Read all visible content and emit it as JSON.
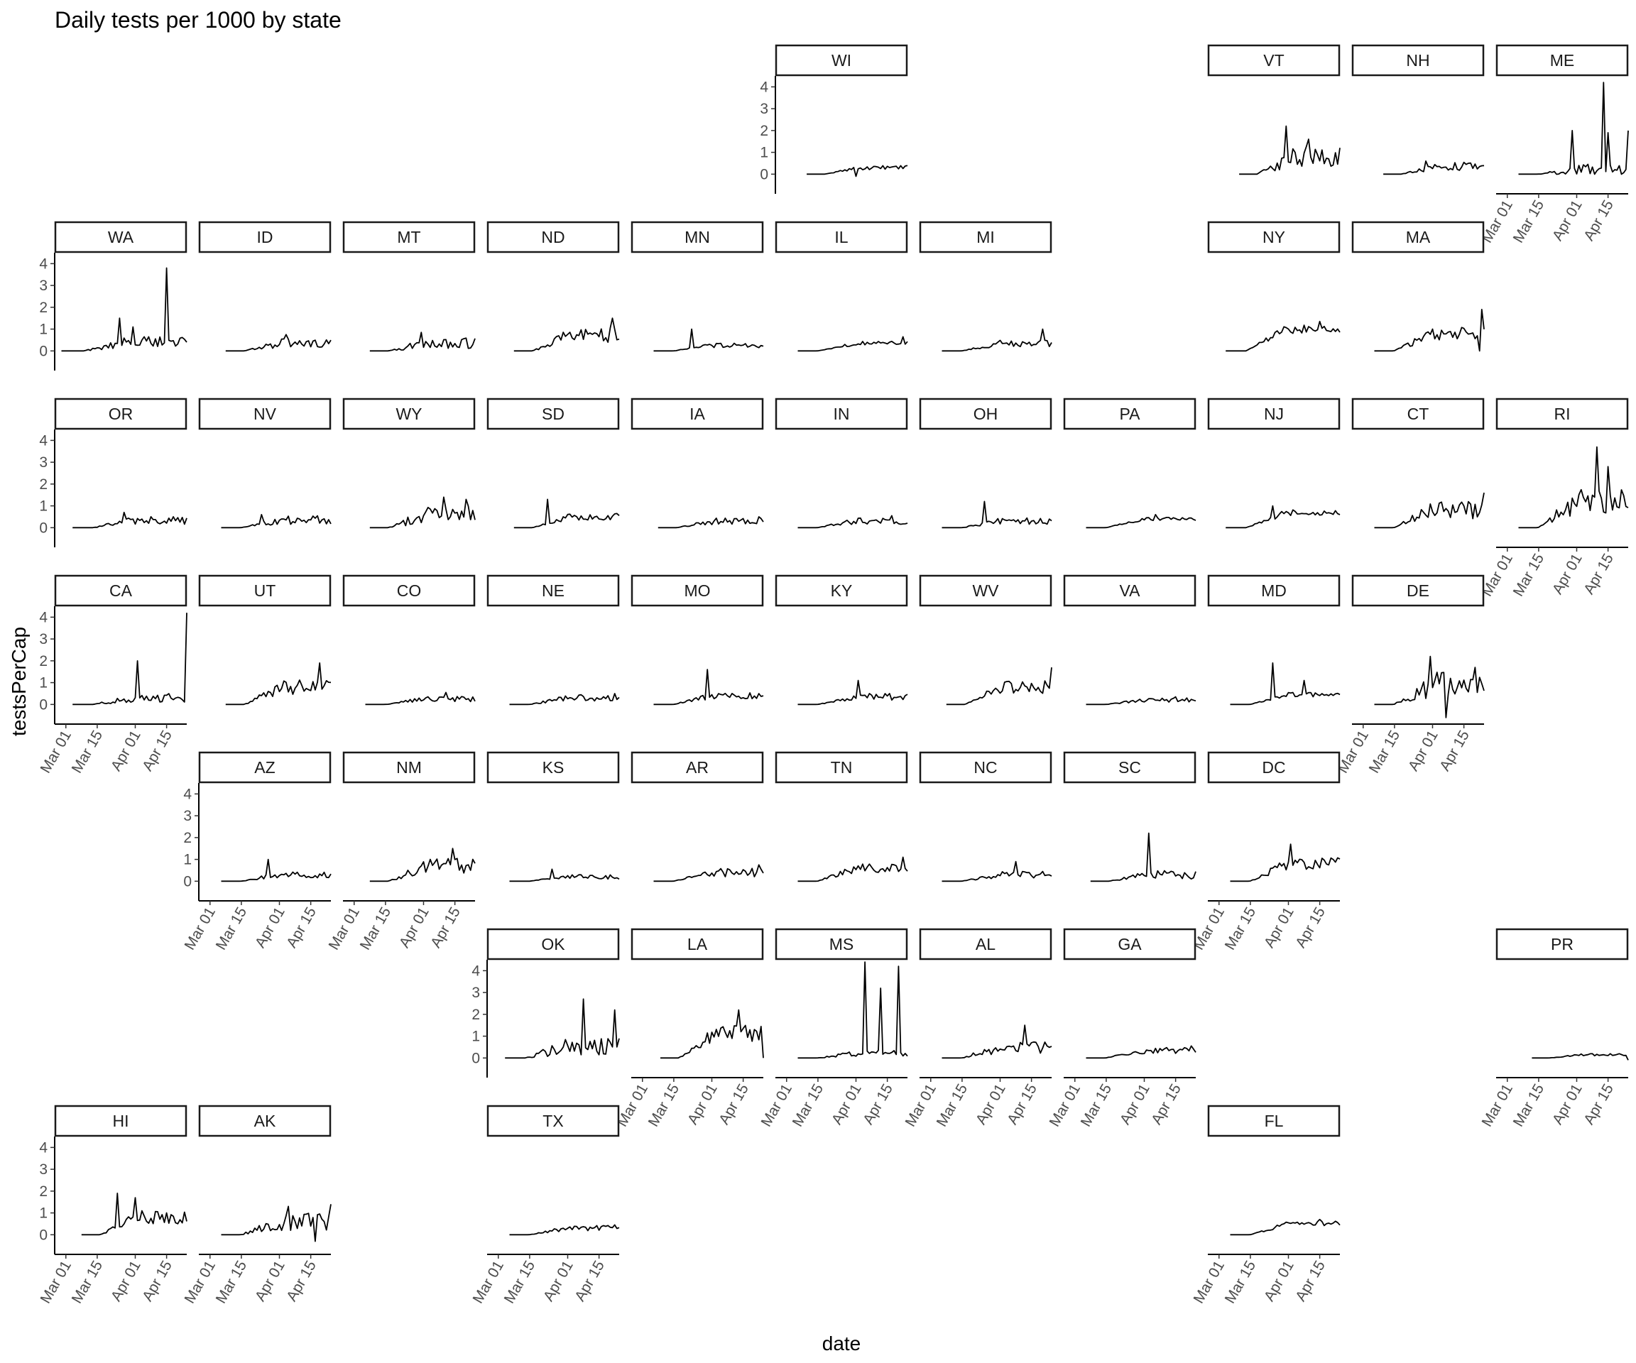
{
  "chart_data": {
    "type": "line",
    "title": "Daily tests per 1000 by state",
    "xlabel": "date",
    "ylabel": "testsPerCap",
    "x_ticks": [
      "Mar 01",
      "Mar 15",
      "Apr 01",
      "Apr 15"
    ],
    "y_ticks": [
      "0",
      "1",
      "2",
      "3",
      "4"
    ],
    "x_range": [
      "2020-02-25",
      "2020-04-24"
    ],
    "ylim": [
      -0.9,
      4.5
    ],
    "grid": false,
    "layout": "facet_geo (US state grid)",
    "line_color": "#000000",
    "panels": [
      {
        "state": "WI",
        "row": 0,
        "col": 5,
        "start": "2020-03-10",
        "base": 0.3,
        "noise": 0.1,
        "peaks": [
          [
            "2020-04-01",
            -0.1
          ]
        ]
      },
      {
        "state": "VT",
        "row": 0,
        "col": 8,
        "start": "2020-03-10",
        "base": 0.8,
        "noise": 0.5,
        "peaks": [
          [
            "2020-03-31",
            2.2
          ],
          [
            "2020-04-10",
            1.6
          ]
        ]
      },
      {
        "state": "NH",
        "row": 0,
        "col": 9,
        "start": "2020-03-10",
        "base": 0.35,
        "noise": 0.2,
        "peaks": [
          [
            "2020-03-29",
            0.6
          ]
        ]
      },
      {
        "state": "ME",
        "row": 0,
        "col": 10,
        "start": "2020-03-06",
        "base": 0.2,
        "noise": 0.25,
        "peaks": [
          [
            "2020-03-30",
            2.0
          ],
          [
            "2020-04-13",
            4.2
          ],
          [
            "2020-04-15",
            1.9
          ],
          [
            "2020-04-24",
            2.0
          ]
        ]
      },
      {
        "state": "WA",
        "row": 1,
        "col": 0,
        "start": "2020-02-28",
        "base": 0.4,
        "noise": 0.25,
        "peaks": [
          [
            "2020-03-25",
            1.5
          ],
          [
            "2020-03-31",
            1.1
          ],
          [
            "2020-04-15",
            3.8
          ]
        ]
      },
      {
        "state": "ID",
        "row": 1,
        "col": 1,
        "start": "2020-03-08",
        "base": 0.35,
        "noise": 0.2,
        "peaks": [
          [
            "2020-04-04",
            0.75
          ]
        ]
      },
      {
        "state": "MT",
        "row": 1,
        "col": 2,
        "start": "2020-03-08",
        "base": 0.35,
        "noise": 0.25,
        "peaks": [
          [
            "2020-03-31",
            0.85
          ]
        ]
      },
      {
        "state": "ND",
        "row": 1,
        "col": 3,
        "start": "2020-03-08",
        "base": 0.7,
        "noise": 0.35,
        "peaks": [
          [
            "2020-04-21",
            1.5
          ]
        ]
      },
      {
        "state": "MN",
        "row": 1,
        "col": 4,
        "start": "2020-03-06",
        "base": 0.25,
        "noise": 0.1,
        "peaks": [
          [
            "2020-03-23",
            1.0
          ]
        ]
      },
      {
        "state": "IL",
        "row": 1,
        "col": 5,
        "start": "2020-03-06",
        "base": 0.35,
        "noise": 0.1,
        "peaks": [
          [
            "2020-04-22",
            0.65
          ]
        ]
      },
      {
        "state": "MI",
        "row": 1,
        "col": 6,
        "start": "2020-03-06",
        "base": 0.35,
        "noise": 0.15,
        "peaks": [
          [
            "2020-04-20",
            1.0
          ]
        ]
      },
      {
        "state": "NY",
        "row": 1,
        "col": 8,
        "start": "2020-03-04",
        "base": 1.0,
        "noise": 0.2,
        "peaks": [
          [
            "2020-04-15",
            1.35
          ]
        ]
      },
      {
        "state": "MA",
        "row": 1,
        "col": 9,
        "start": "2020-03-06",
        "base": 0.8,
        "noise": 0.3,
        "peaks": [
          [
            "2020-04-23",
            1.9
          ],
          [
            "2020-04-22",
            0.0
          ]
        ]
      },
      {
        "state": "OR",
        "row": 2,
        "col": 0,
        "start": "2020-03-04",
        "base": 0.35,
        "noise": 0.2,
        "peaks": [
          [
            "2020-03-27",
            0.7
          ]
        ]
      },
      {
        "state": "NV",
        "row": 2,
        "col": 1,
        "start": "2020-03-06",
        "base": 0.35,
        "noise": 0.2,
        "peaks": [
          [
            "2020-03-24",
            0.6
          ]
        ]
      },
      {
        "state": "WY",
        "row": 2,
        "col": 2,
        "start": "2020-03-08",
        "base": 0.6,
        "noise": 0.4,
        "peaks": [
          [
            "2020-04-10",
            1.4
          ],
          [
            "2020-04-20",
            1.3
          ]
        ]
      },
      {
        "state": "SD",
        "row": 2,
        "col": 3,
        "start": "2020-03-08",
        "base": 0.5,
        "noise": 0.15,
        "peaks": [
          [
            "2020-03-23",
            1.3
          ]
        ]
      },
      {
        "state": "IA",
        "row": 2,
        "col": 4,
        "start": "2020-03-08",
        "base": 0.3,
        "noise": 0.15,
        "peaks": [
          [
            "2020-04-22",
            0.5
          ]
        ]
      },
      {
        "state": "IN",
        "row": 2,
        "col": 5,
        "start": "2020-03-06",
        "base": 0.3,
        "noise": 0.15,
        "peaks": [
          [
            "2020-04-17",
            0.55
          ]
        ]
      },
      {
        "state": "OH",
        "row": 2,
        "col": 6,
        "start": "2020-03-06",
        "base": 0.3,
        "noise": 0.15,
        "peaks": [
          [
            "2020-03-25",
            1.2
          ]
        ]
      },
      {
        "state": "PA",
        "row": 2,
        "col": 7,
        "start": "2020-03-06",
        "base": 0.4,
        "noise": 0.08,
        "peaks": [
          [
            "2020-04-06",
            0.6
          ]
        ]
      },
      {
        "state": "NJ",
        "row": 2,
        "col": 8,
        "start": "2020-03-04",
        "base": 0.7,
        "noise": 0.15,
        "peaks": [
          [
            "2020-03-25",
            1.0
          ]
        ]
      },
      {
        "state": "CT",
        "row": 2,
        "col": 9,
        "start": "2020-03-06",
        "base": 0.8,
        "noise": 0.4,
        "peaks": [
          [
            "2020-04-24",
            1.6
          ]
        ]
      },
      {
        "state": "RI",
        "row": 2,
        "col": 10,
        "start": "2020-03-06",
        "base": 1.2,
        "noise": 0.6,
        "peaks": [
          [
            "2020-04-10",
            3.7
          ],
          [
            "2020-04-15",
            2.8
          ]
        ]
      },
      {
        "state": "CA",
        "row": 3,
        "col": 0,
        "start": "2020-03-04",
        "base": 0.3,
        "noise": 0.2,
        "peaks": [
          [
            "2020-04-02",
            2.0
          ],
          [
            "2020-04-24",
            4.2
          ]
        ]
      },
      {
        "state": "UT",
        "row": 3,
        "col": 1,
        "start": "2020-03-08",
        "base": 0.8,
        "noise": 0.35,
        "peaks": [
          [
            "2020-04-19",
            1.9
          ]
        ]
      },
      {
        "state": "CO",
        "row": 3,
        "col": 2,
        "start": "2020-03-06",
        "base": 0.25,
        "noise": 0.12,
        "peaks": [
          [
            "2020-04-11",
            0.55
          ]
        ]
      },
      {
        "state": "NE",
        "row": 3,
        "col": 3,
        "start": "2020-03-06",
        "base": 0.3,
        "noise": 0.15,
        "peaks": [
          [
            "2020-04-22",
            0.5
          ]
        ]
      },
      {
        "state": "MO",
        "row": 3,
        "col": 4,
        "start": "2020-03-06",
        "base": 0.4,
        "noise": 0.15,
        "peaks": [
          [
            "2020-03-30",
            1.6
          ]
        ]
      },
      {
        "state": "KY",
        "row": 3,
        "col": 5,
        "start": "2020-03-06",
        "base": 0.35,
        "noise": 0.15,
        "peaks": [
          [
            "2020-04-02",
            1.1
          ]
        ]
      },
      {
        "state": "WV",
        "row": 3,
        "col": 6,
        "start": "2020-03-08",
        "base": 0.8,
        "noise": 0.3,
        "peaks": [
          [
            "2020-04-24",
            1.7
          ]
        ]
      },
      {
        "state": "VA",
        "row": 3,
        "col": 7,
        "start": "2020-03-06",
        "base": 0.2,
        "noise": 0.1,
        "peaks": [
          [
            "2020-04-15",
            0.35
          ]
        ]
      },
      {
        "state": "MD",
        "row": 3,
        "col": 8,
        "start": "2020-03-06",
        "base": 0.45,
        "noise": 0.1,
        "peaks": [
          [
            "2020-03-25",
            1.9
          ],
          [
            "2020-04-08",
            1.1
          ]
        ]
      },
      {
        "state": "DE",
        "row": 3,
        "col": 9,
        "start": "2020-03-06",
        "base": 0.9,
        "noise": 0.6,
        "peaks": [
          [
            "2020-03-31",
            2.2
          ],
          [
            "2020-04-07",
            -0.6
          ],
          [
            "2020-04-20",
            1.7
          ]
        ]
      },
      {
        "state": "AZ",
        "row": 4,
        "col": 1,
        "start": "2020-03-06",
        "base": 0.3,
        "noise": 0.15,
        "peaks": [
          [
            "2020-03-27",
            1.0
          ]
        ]
      },
      {
        "state": "NM",
        "row": 4,
        "col": 2,
        "start": "2020-03-08",
        "base": 0.7,
        "noise": 0.35,
        "peaks": [
          [
            "2020-04-14",
            1.5
          ]
        ]
      },
      {
        "state": "KS",
        "row": 4,
        "col": 3,
        "start": "2020-03-06",
        "base": 0.2,
        "noise": 0.1,
        "peaks": [
          [
            "2020-03-25",
            0.55
          ]
        ]
      },
      {
        "state": "AR",
        "row": 4,
        "col": 4,
        "start": "2020-03-06",
        "base": 0.4,
        "noise": 0.2,
        "peaks": [
          [
            "2020-04-22",
            0.75
          ]
        ]
      },
      {
        "state": "TN",
        "row": 4,
        "col": 5,
        "start": "2020-03-06",
        "base": 0.6,
        "noise": 0.2,
        "peaks": [
          [
            "2020-04-22",
            1.1
          ]
        ]
      },
      {
        "state": "NC",
        "row": 4,
        "col": 6,
        "start": "2020-03-06",
        "base": 0.3,
        "noise": 0.15,
        "peaks": [
          [
            "2020-04-08",
            0.9
          ]
        ]
      },
      {
        "state": "SC",
        "row": 4,
        "col": 7,
        "start": "2020-03-08",
        "base": 0.3,
        "noise": 0.2,
        "peaks": [
          [
            "2020-04-03",
            2.2
          ]
        ]
      },
      {
        "state": "DC",
        "row": 4,
        "col": 8,
        "start": "2020-03-06",
        "base": 0.8,
        "noise": 0.3,
        "peaks": [
          [
            "2020-04-02",
            1.7
          ]
        ]
      },
      {
        "state": "OK",
        "row": 5,
        "col": 3,
        "start": "2020-03-04",
        "base": 0.5,
        "noise": 0.4,
        "peaks": [
          [
            "2020-04-08",
            2.7
          ],
          [
            "2020-04-22",
            2.2
          ]
        ]
      },
      {
        "state": "LA",
        "row": 5,
        "col": 4,
        "start": "2020-03-09",
        "base": 1.1,
        "noise": 0.4,
        "peaks": [
          [
            "2020-04-13",
            2.2
          ],
          [
            "2020-04-24",
            0.0
          ]
        ]
      },
      {
        "state": "MS",
        "row": 5,
        "col": 5,
        "start": "2020-03-06",
        "base": 0.2,
        "noise": 0.15,
        "peaks": [
          [
            "2020-04-05",
            4.4
          ],
          [
            "2020-04-12",
            3.2
          ],
          [
            "2020-04-20",
            4.2
          ]
        ]
      },
      {
        "state": "AL",
        "row": 5,
        "col": 6,
        "start": "2020-03-06",
        "base": 0.5,
        "noise": 0.3,
        "peaks": [
          [
            "2020-04-12",
            1.5
          ]
        ]
      },
      {
        "state": "GA",
        "row": 5,
        "col": 7,
        "start": "2020-03-06",
        "base": 0.35,
        "noise": 0.15,
        "peaks": [
          [
            "2020-04-22",
            0.55
          ]
        ]
      },
      {
        "state": "PR",
        "row": 5,
        "col": 10,
        "start": "2020-03-12",
        "base": 0.15,
        "noise": 0.05,
        "peaks": [
          [
            "2020-04-24",
            -0.1
          ]
        ]
      },
      {
        "state": "HI",
        "row": 6,
        "col": 0,
        "start": "2020-03-08",
        "base": 0.8,
        "noise": 0.3,
        "peaks": [
          [
            "2020-03-24",
            1.9
          ],
          [
            "2020-04-01",
            1.7
          ]
        ]
      },
      {
        "state": "AK",
        "row": 6,
        "col": 1,
        "start": "2020-03-06",
        "base": 0.6,
        "noise": 0.4,
        "peaks": [
          [
            "2020-04-05",
            1.3
          ],
          [
            "2020-04-17",
            -0.3
          ],
          [
            "2020-04-24",
            1.4
          ]
        ]
      },
      {
        "state": "TX",
        "row": 6,
        "col": 3,
        "start": "2020-03-06",
        "base": 0.3,
        "noise": 0.12,
        "peaks": [
          [
            "2020-04-22",
            0.45
          ]
        ]
      },
      {
        "state": "FL",
        "row": 6,
        "col": 8,
        "start": "2020-03-06",
        "base": 0.5,
        "noise": 0.12,
        "peaks": [
          [
            "2020-04-15",
            0.7
          ]
        ]
      }
    ]
  }
}
